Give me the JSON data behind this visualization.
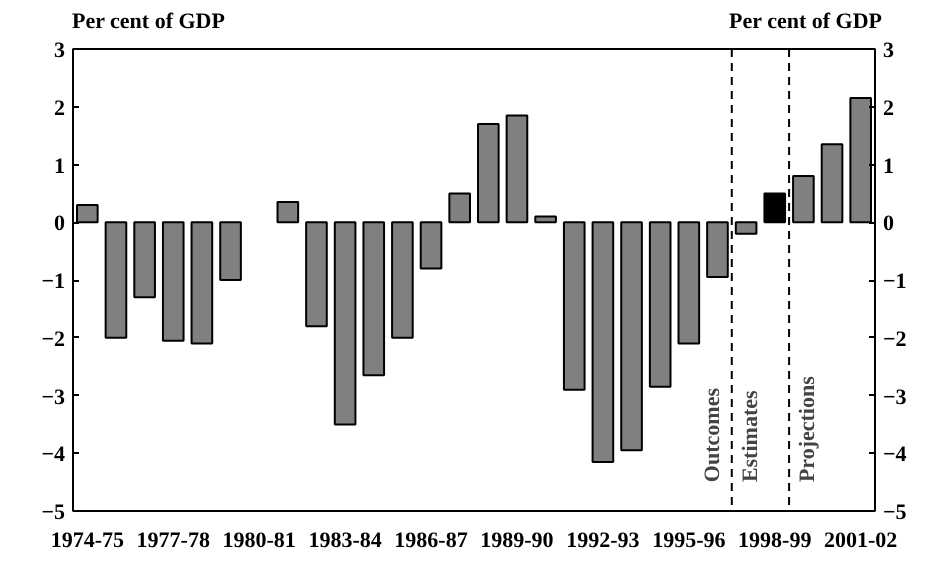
{
  "chart_data": {
    "type": "bar",
    "ylabel": "Per cent of GDP",
    "y2label": "Per cent of GDP",
    "categories": [
      "1974-75",
      null,
      null,
      "1977-78",
      null,
      null,
      "1980-81",
      null,
      null,
      "1983-84",
      null,
      null,
      "1986-87",
      null,
      null,
      "1989-90",
      null,
      null,
      "1992-93",
      null,
      null,
      "1995-96",
      null,
      null,
      "1998-99",
      null,
      null,
      "2001-02"
    ],
    "values": [
      0.3,
      -2.0,
      -1.3,
      -2.05,
      -2.1,
      -1.0,
      null,
      0.35,
      -1.8,
      -3.5,
      -2.65,
      -2.0,
      -0.8,
      0.5,
      1.7,
      1.85,
      0.1,
      -2.9,
      -4.15,
      -3.95,
      -2.85,
      -2.1,
      -0.95,
      -0.2,
      0.5,
      0.8,
      1.35,
      2.15
    ],
    "colors": [
      "#808080",
      "#808080",
      "#808080",
      "#808080",
      "#808080",
      "#808080",
      "#808080",
      "#808080",
      "#808080",
      "#808080",
      "#808080",
      "#808080",
      "#808080",
      "#808080",
      "#808080",
      "#808080",
      "#808080",
      "#808080",
      "#808080",
      "#808080",
      "#808080",
      "#808080",
      "#808080",
      "#808080",
      "#000000",
      "#808080",
      "#808080",
      "#808080"
    ],
    "ylim": [
      -5,
      3
    ],
    "yticks": [
      -5,
      -4,
      -3,
      -2,
      -1,
      0,
      1,
      2,
      3
    ],
    "y2lim": [
      -5,
      3
    ],
    "y2ticks": [
      -5,
      -4,
      -3,
      -2,
      -1,
      0,
      1,
      2,
      3
    ],
    "annotations": [
      "Outcomes",
      "Estimates",
      "Projections"
    ],
    "grid": false,
    "legend": false
  }
}
